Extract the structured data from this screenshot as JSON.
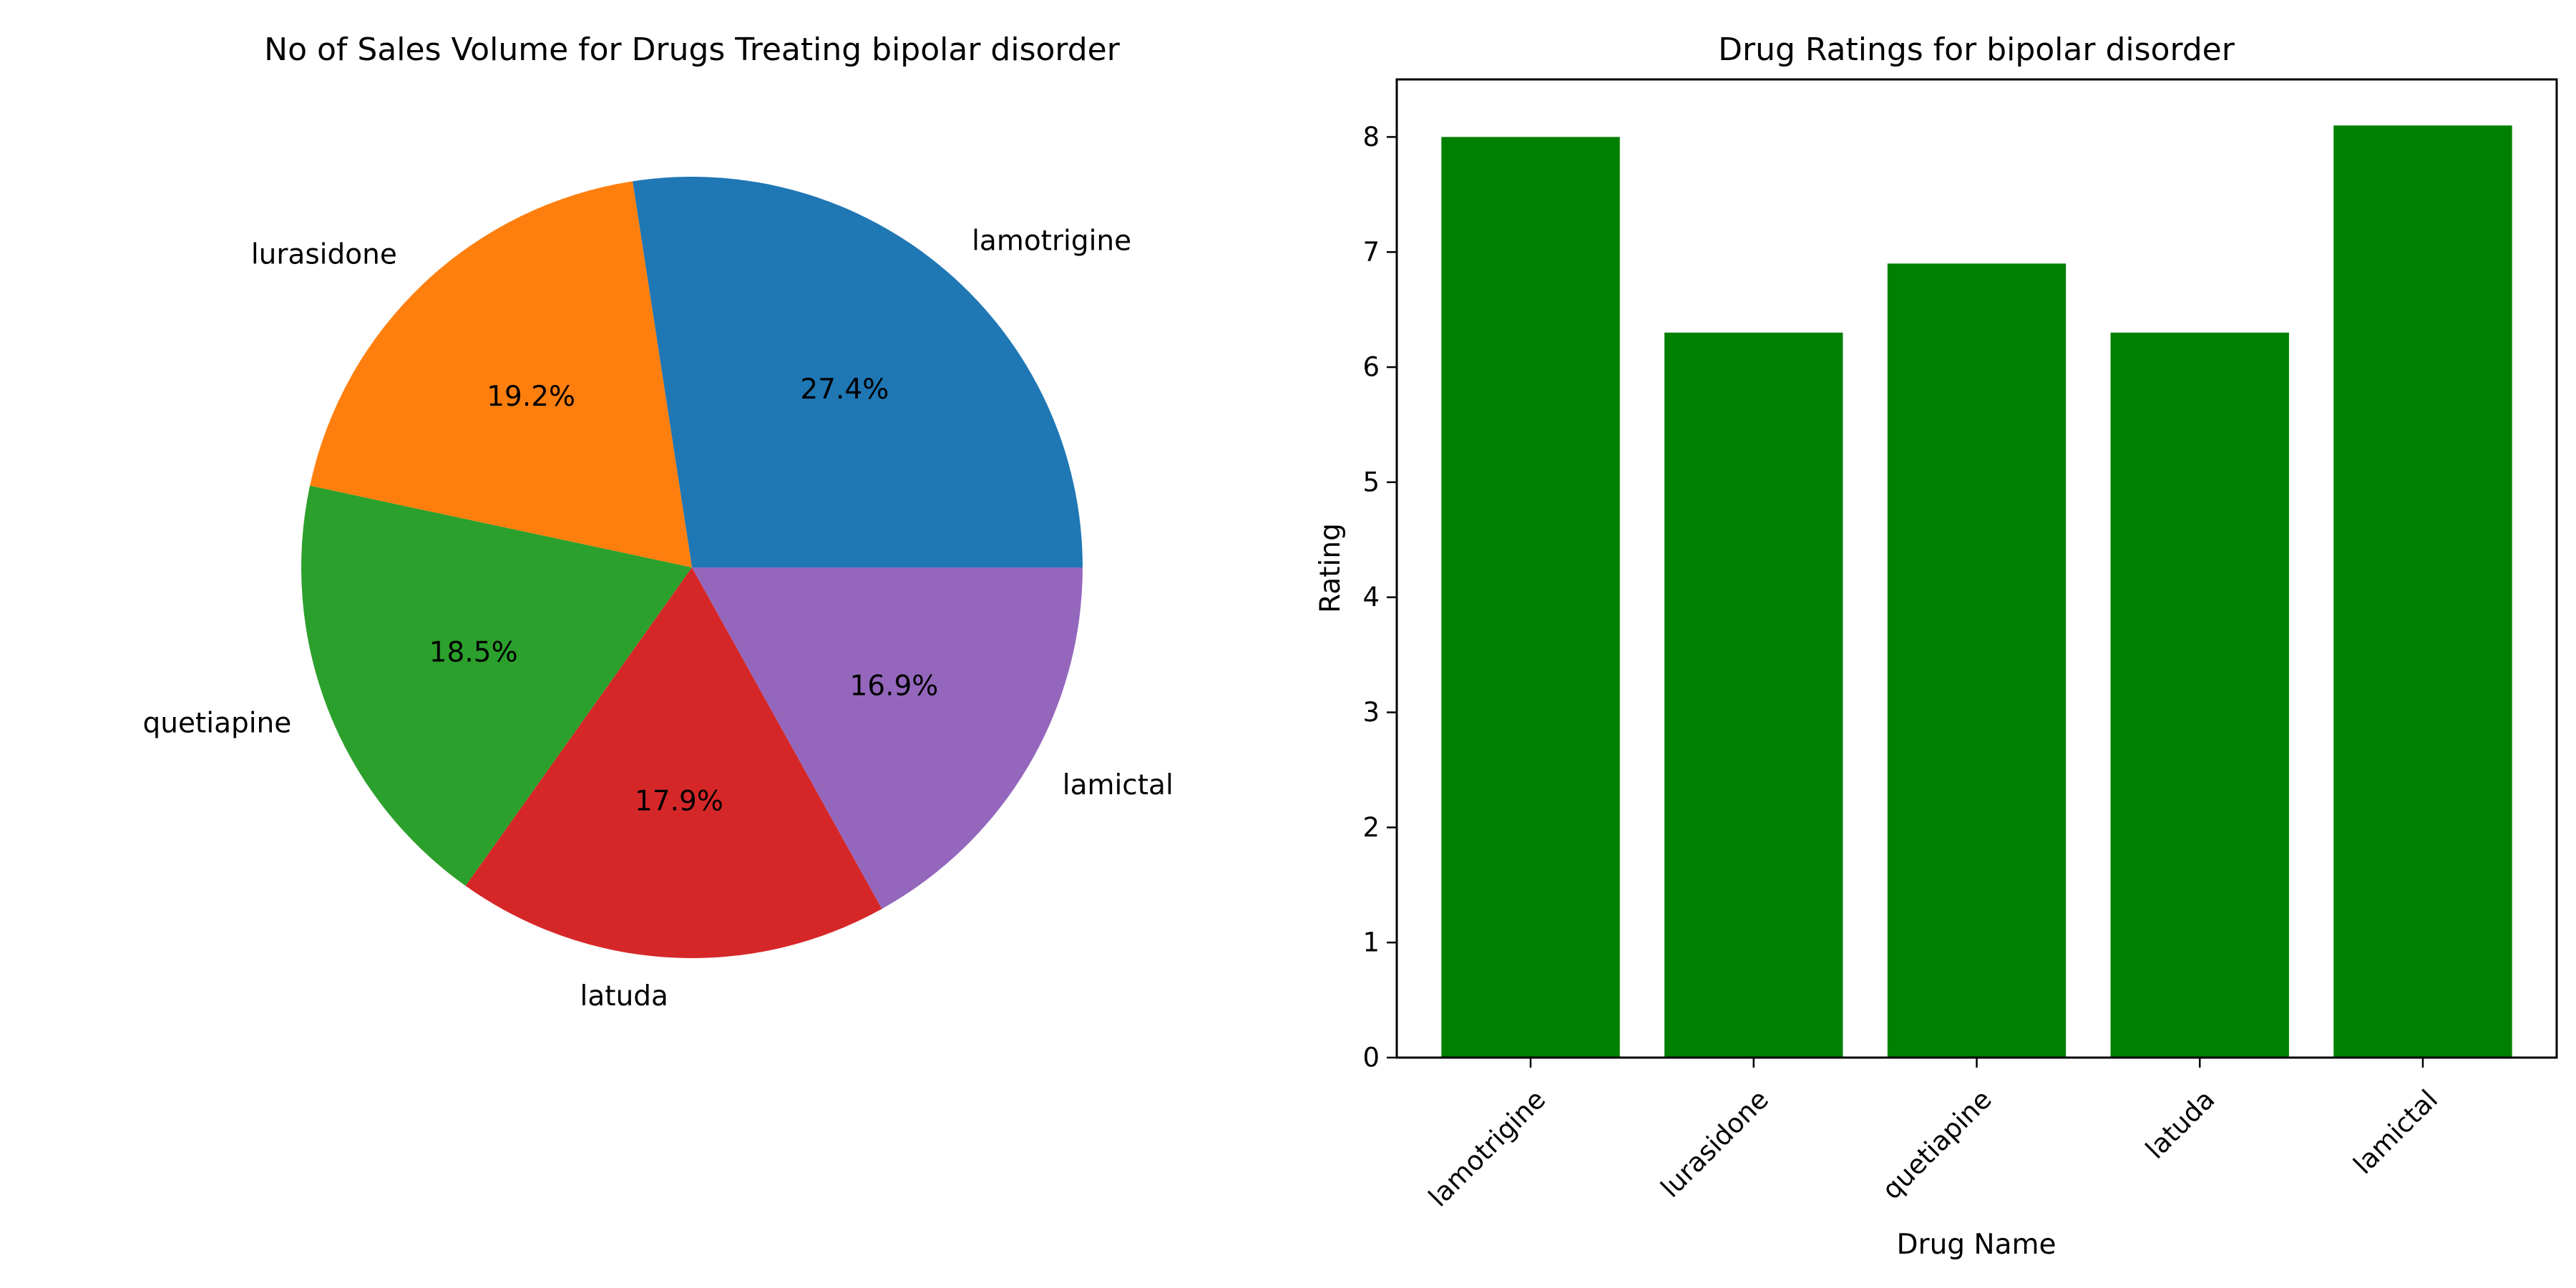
{
  "chart_data": [
    {
      "type": "pie",
      "title": "No of Sales Volume for Drugs Treating bipolar disorder",
      "labels": [
        "lamotrigine",
        "lurasidone",
        "quetiapine",
        "latuda",
        "lamictal"
      ],
      "values": [
        27.4,
        19.2,
        18.5,
        17.9,
        16.9
      ],
      "value_labels": [
        "27.4%",
        "19.2%",
        "18.5%",
        "17.9%",
        "16.9%"
      ],
      "colors": [
        "#1f77b4",
        "#ff7f0e",
        "#2ca02c",
        "#d62728",
        "#9467bd"
      ],
      "start_angle_deg": 0,
      "direction": "counterclockwise"
    },
    {
      "type": "bar",
      "title": "Drug Ratings for bipolar disorder",
      "categories": [
        "lamotrigine",
        "lurasidone",
        "quetiapine",
        "latuda",
        "lamictal"
      ],
      "values": [
        8.0,
        6.3,
        6.9,
        6.3,
        8.1
      ],
      "xlabel": "Drug Name",
      "ylabel": "Rating",
      "ylim": [
        0,
        8.5
      ],
      "yticks": [
        "0",
        "1",
        "2",
        "3",
        "4",
        "5",
        "6",
        "7",
        "8"
      ],
      "bar_color": "#008000",
      "grid": false,
      "xtick_rotation_deg": 45
    }
  ]
}
